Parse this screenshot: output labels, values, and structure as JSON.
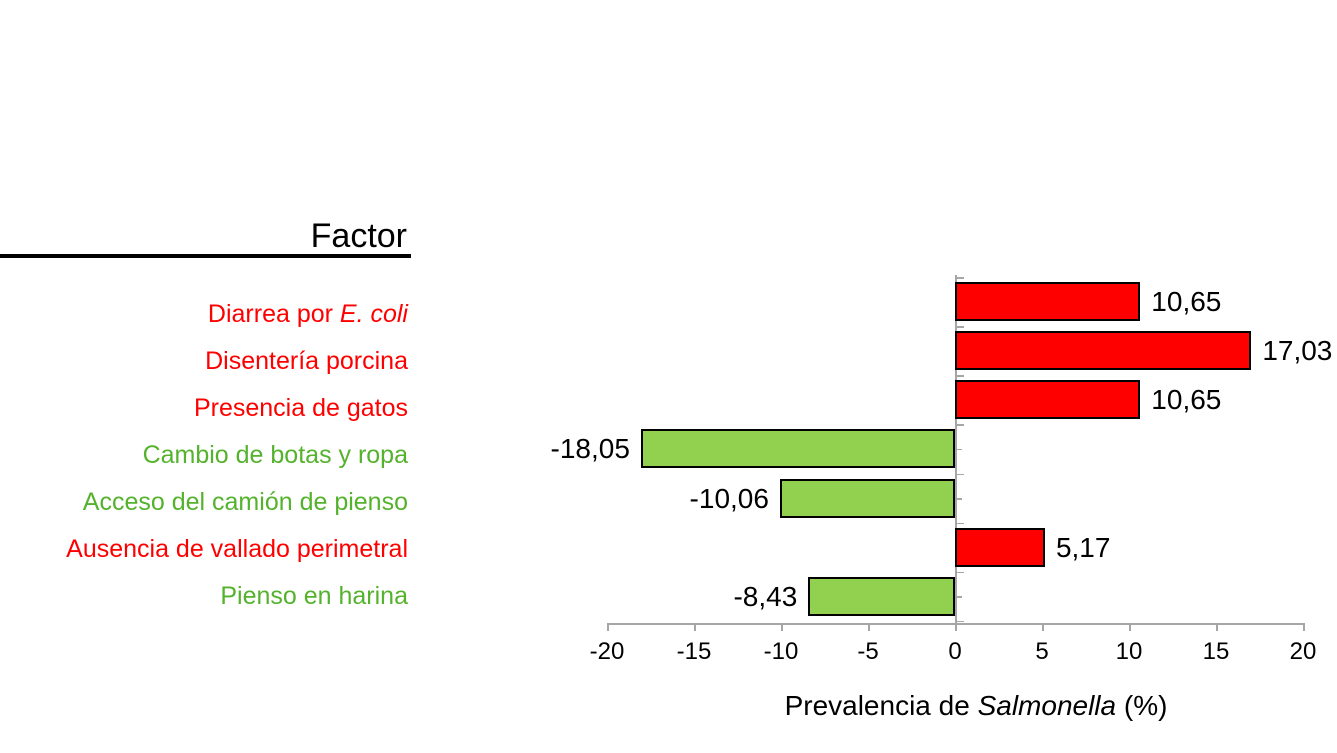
{
  "header": {
    "title": "Factor"
  },
  "axis": {
    "title_prefix": "Prevalencia de ",
    "title_italic": "Salmonella",
    "title_suffix": " (%)"
  },
  "colors": {
    "positive_bar": "#FF0000",
    "negative_bar": "#92D050",
    "red_text": "#FF0000",
    "green_text": "#55B22D",
    "axis_gray": "#A6A6A6",
    "bar_border": "#000000",
    "value_text": "#000000"
  },
  "factors": [
    {
      "prefix": "Diarrea por ",
      "italic": "E. coli",
      "suffix": "",
      "color": "#FF0000"
    },
    {
      "prefix": "Disentería porcina",
      "italic": "",
      "suffix": "",
      "color": "#FF0000"
    },
    {
      "prefix": "Presencia de gatos",
      "italic": "",
      "suffix": "",
      "color": "#FF0000"
    },
    {
      "prefix": "Cambio de botas y ropa",
      "italic": "",
      "suffix": "",
      "color": "#55B22D"
    },
    {
      "prefix": "Acceso del camión de pienso",
      "italic": "",
      "suffix": "",
      "color": "#55B22D"
    },
    {
      "prefix": "Ausencia de vallado perimetral",
      "italic": "",
      "suffix": "",
      "color": "#FF0000"
    },
    {
      "prefix": "Pienso en harina",
      "italic": "",
      "suffix": "",
      "color": "#55B22D"
    }
  ],
  "chart_data": {
    "type": "bar",
    "orientation": "horizontal",
    "title": "Factor",
    "xlabel": "Prevalencia de Salmonella (%)",
    "xlim": [
      -20,
      20
    ],
    "xticks": [
      -20,
      -15,
      -10,
      -5,
      0,
      5,
      10,
      15,
      20
    ],
    "xtick_labels": [
      "-20",
      "-15",
      "-10",
      "-5",
      "0",
      "5",
      "10",
      "15",
      "20"
    ],
    "categories": [
      "Diarrea por E. coli",
      "Disentería porcina",
      "Presencia de gatos",
      "Cambio de botas y ropa",
      "Acceso del camión de pienso",
      "Ausencia de vallado perimetral",
      "Pienso en harina"
    ],
    "values": [
      10.65,
      17.03,
      10.65,
      -18.05,
      -10.06,
      5.17,
      -8.43
    ],
    "value_labels": [
      "10,65",
      "17,03",
      "10,65",
      "-18,05",
      "-10,06",
      "5,17",
      "-8,43"
    ],
    "bar_colors": [
      "#FF0000",
      "#FF0000",
      "#FF0000",
      "#92D050",
      "#92D050",
      "#FF0000",
      "#92D050"
    ],
    "grid": false,
    "legend": "none"
  }
}
